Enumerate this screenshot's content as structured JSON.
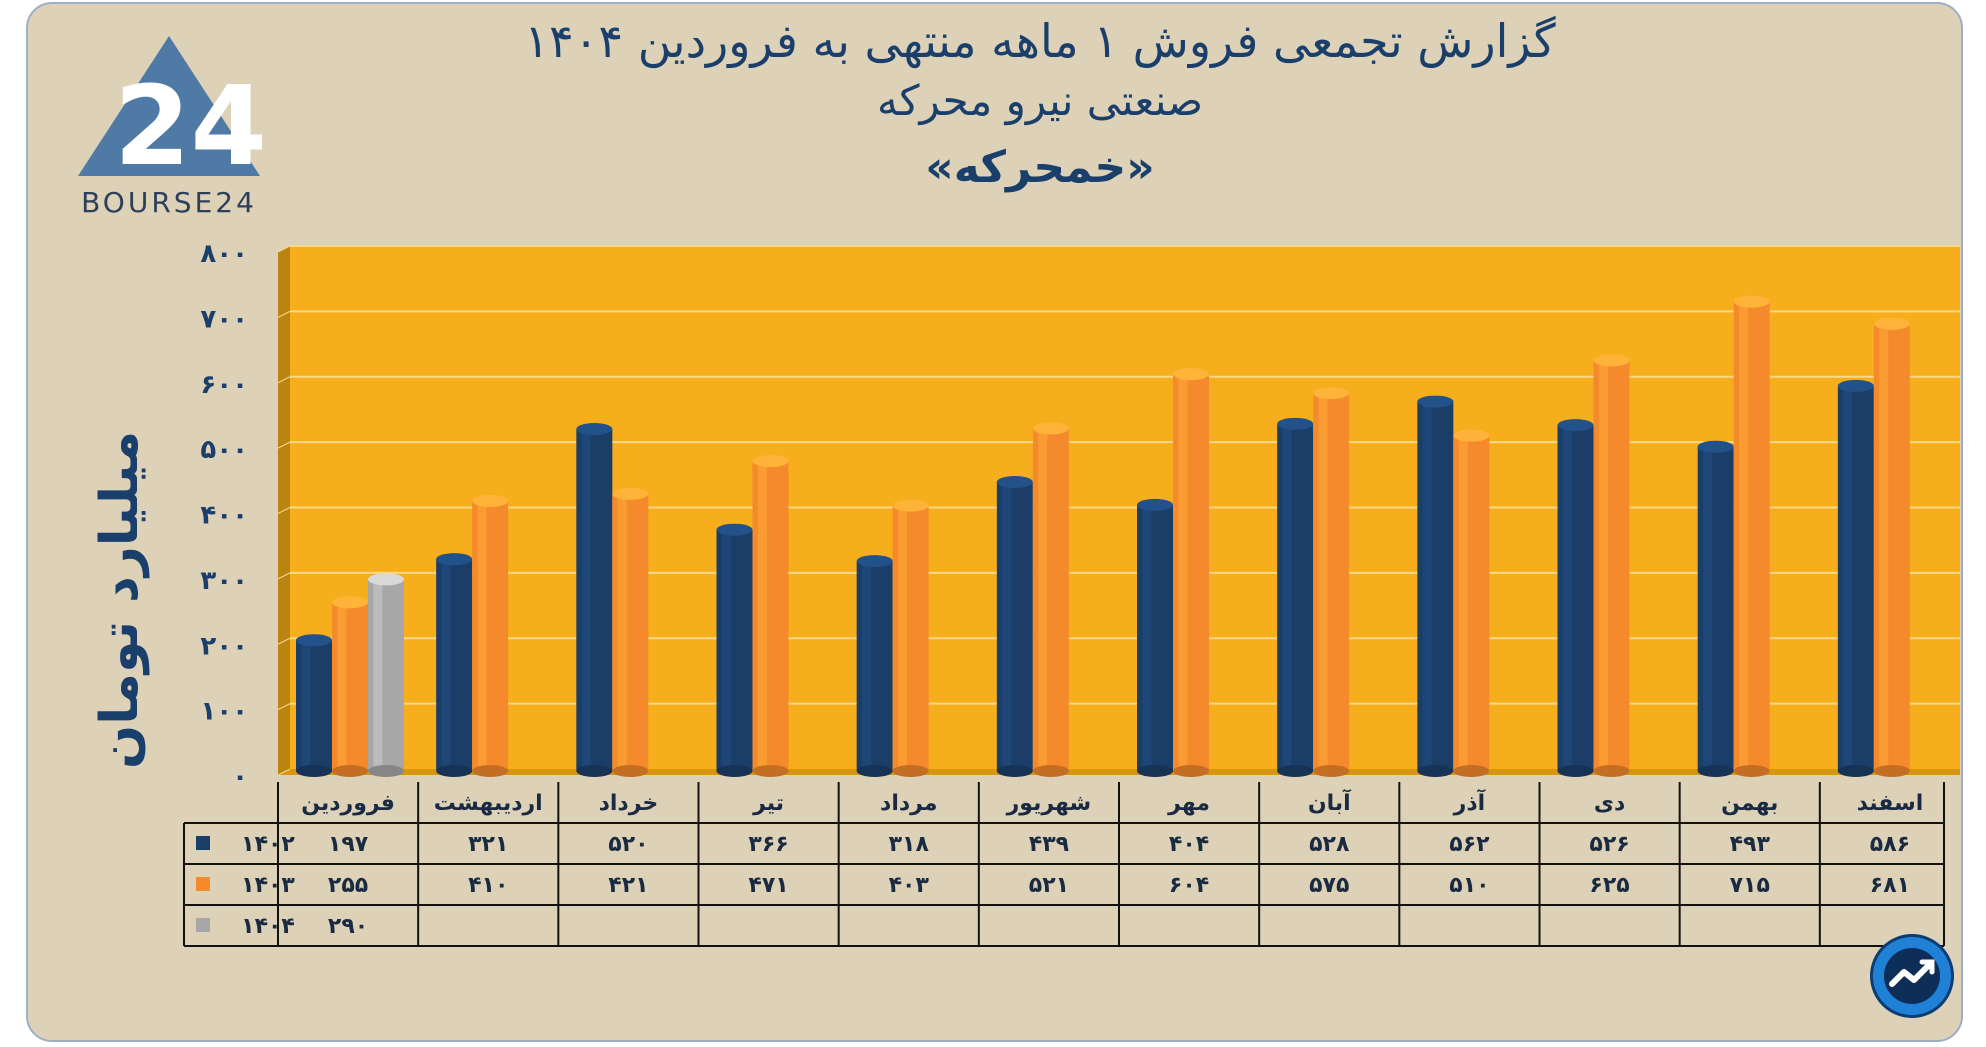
{
  "title_lines": [
    "گزارش تجمعی فروش ۱ ماهه منتهی به فروردین ۱۴۰۴",
    "صنعتی نیرو محرکه",
    "«خمحرکه»"
  ],
  "logo": {
    "text": "BOURSE24"
  },
  "colors": {
    "background": "#ddd2b8",
    "plot_bg": "#f6ae1d",
    "series_1402": "#1b3e69",
    "series_1403": "#f48a2c",
    "series_1404": "#a7a7a7",
    "title": "#1a3f6b"
  },
  "chart_data": {
    "type": "bar",
    "ylabel": "میلیارد تومان",
    "ylim": [
      0,
      800
    ],
    "yticks": [
      "۰",
      "۱۰۰",
      "۲۰۰",
      "۳۰۰",
      "۴۰۰",
      "۵۰۰",
      "۶۰۰",
      "۷۰۰",
      "۸۰۰"
    ],
    "categories": [
      "فروردین",
      "اردیبهشت",
      "خرداد",
      "تیر",
      "مرداد",
      "شهریور",
      "مهر",
      "آبان",
      "آذر",
      "دی",
      "بهمن",
      "اسفند"
    ],
    "series": [
      {
        "name": "۱۴۰۲",
        "values": [
          197,
          321,
          520,
          366,
          318,
          439,
          404,
          528,
          562,
          526,
          493,
          586
        ],
        "labels": [
          "۱۹۷",
          "۳۲۱",
          "۵۲۰",
          "۳۶۶",
          "۳۱۸",
          "۴۳۹",
          "۴۰۴",
          "۵۲۸",
          "۵۶۲",
          "۵۲۶",
          "۴۹۳",
          "۵۸۶"
        ]
      },
      {
        "name": "۱۴۰۳",
        "values": [
          255,
          410,
          421,
          471,
          403,
          521,
          604,
          575,
          510,
          625,
          715,
          681
        ],
        "labels": [
          "۲۵۵",
          "۴۱۰",
          "۴۲۱",
          "۴۷۱",
          "۴۰۳",
          "۵۲۱",
          "۶۰۴",
          "۵۷۵",
          "۵۱۰",
          "۶۲۵",
          "۷۱۵",
          "۶۸۱"
        ]
      },
      {
        "name": "۱۴۰۴",
        "values": [
          290,
          null,
          null,
          null,
          null,
          null,
          null,
          null,
          null,
          null,
          null,
          null
        ],
        "labels": [
          "۲۹۰",
          "",
          "",
          "",
          "",
          "",
          "",
          "",
          "",
          "",
          "",
          ""
        ]
      }
    ],
    "grid": true,
    "legend": "data table"
  }
}
